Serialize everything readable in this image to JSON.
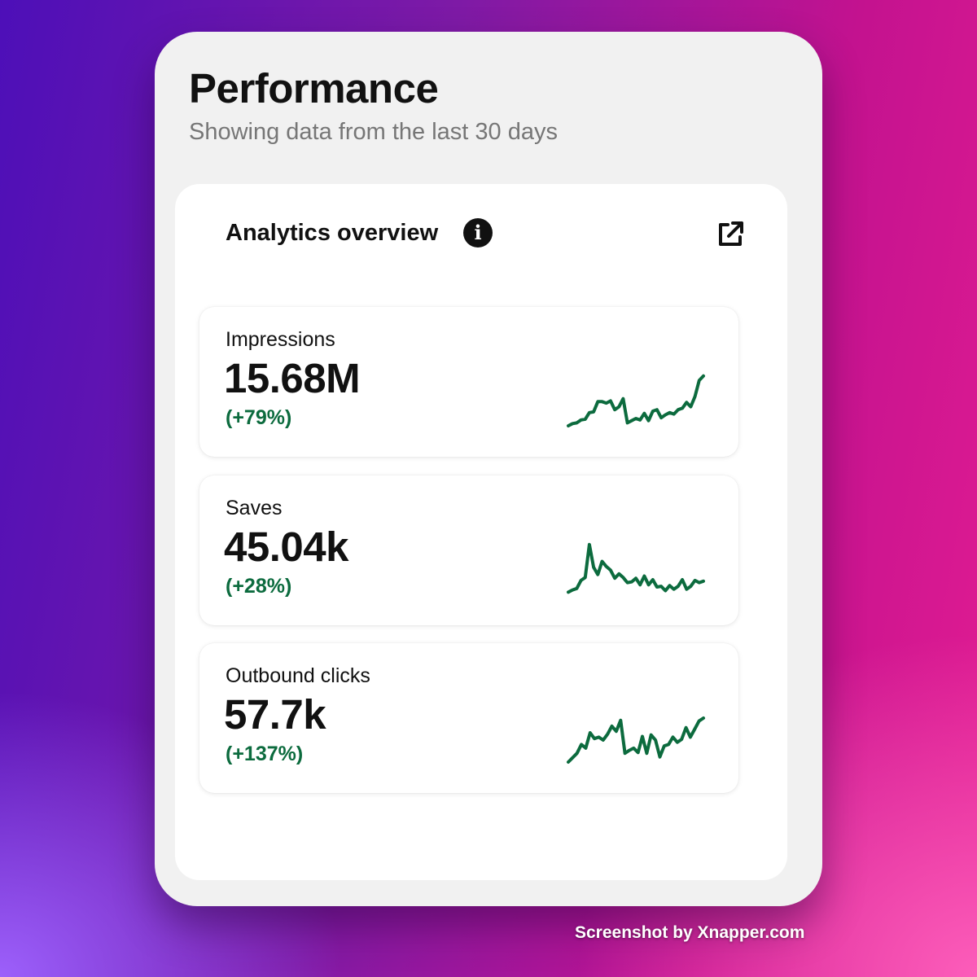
{
  "header": {
    "title": "Performance",
    "subtitle": "Showing data from the last 30 days"
  },
  "overview": {
    "title": "Analytics overview",
    "info_icon": "info-icon",
    "external_icon": "external-link-icon"
  },
  "colors": {
    "trend_green": "#0c6b3e",
    "text_dark": "#111111",
    "subtitle_gray": "#767676",
    "card_bg": "#ffffff",
    "panel_bg": "#f1f1f1"
  },
  "metrics": [
    {
      "label": "Impressions",
      "value": "15.68M",
      "change": "(+79%)",
      "trend": [
        10,
        13,
        14,
        18,
        19,
        28,
        29,
        43,
        43,
        41,
        44,
        32,
        36,
        47,
        14,
        17,
        20,
        18,
        27,
        17,
        30,
        32,
        21,
        25,
        28,
        26,
        32,
        34,
        42,
        36,
        50,
        72,
        78
      ]
    },
    {
      "label": "Saves",
      "value": "45.04k",
      "change": "(+28%)",
      "trend": [
        13,
        16,
        18,
        29,
        33,
        78,
        47,
        37,
        55,
        48,
        43,
        32,
        38,
        33,
        26,
        27,
        32,
        23,
        35,
        23,
        30,
        20,
        21,
        15,
        22,
        17,
        21,
        30,
        17,
        21,
        29,
        26,
        28
      ]
    },
    {
      "label": "Outbound clicks",
      "value": "57.7k",
      "change": "(+137%)",
      "trend": [
        10,
        16,
        22,
        34,
        29,
        50,
        42,
        44,
        40,
        48,
        59,
        52,
        67,
        22,
        26,
        29,
        23,
        45,
        22,
        47,
        40,
        17,
        32,
        34,
        44,
        37,
        41,
        57,
        44,
        55,
        66,
        70
      ]
    }
  ]
}
